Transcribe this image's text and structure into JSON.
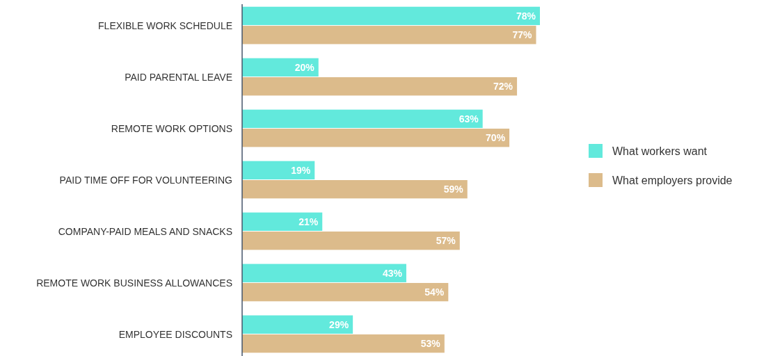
{
  "chart_data": {
    "type": "bar",
    "orientation": "horizontal",
    "categories": [
      "FLEXIBLE WORK SCHEDULE",
      "PAID PARENTAL LEAVE",
      "REMOTE WORK OPTIONS",
      "PAID TIME OFF FOR VOLUNTEERING",
      "COMPANY-PAID MEALS AND SNACKS",
      "REMOTE WORK BUSINESS ALLOWANCES",
      "EMPLOYEE DISCOUNTS"
    ],
    "series": [
      {
        "name": "What workers want",
        "color": "#62e9dc",
        "values": [
          78,
          20,
          63,
          19,
          21,
          43,
          29
        ],
        "value_labels": [
          "78%",
          "20%",
          "63%",
          "19%",
          "21%",
          "43%",
          "29%"
        ]
      },
      {
        "name": "What employers provide",
        "color": "#dcbb8b",
        "values": [
          77,
          72,
          70,
          59,
          57,
          54,
          53
        ],
        "value_labels": [
          "77%",
          "72%",
          "70%",
          "59%",
          "57%",
          "54%",
          "53%"
        ]
      }
    ],
    "legend": "right"
  }
}
